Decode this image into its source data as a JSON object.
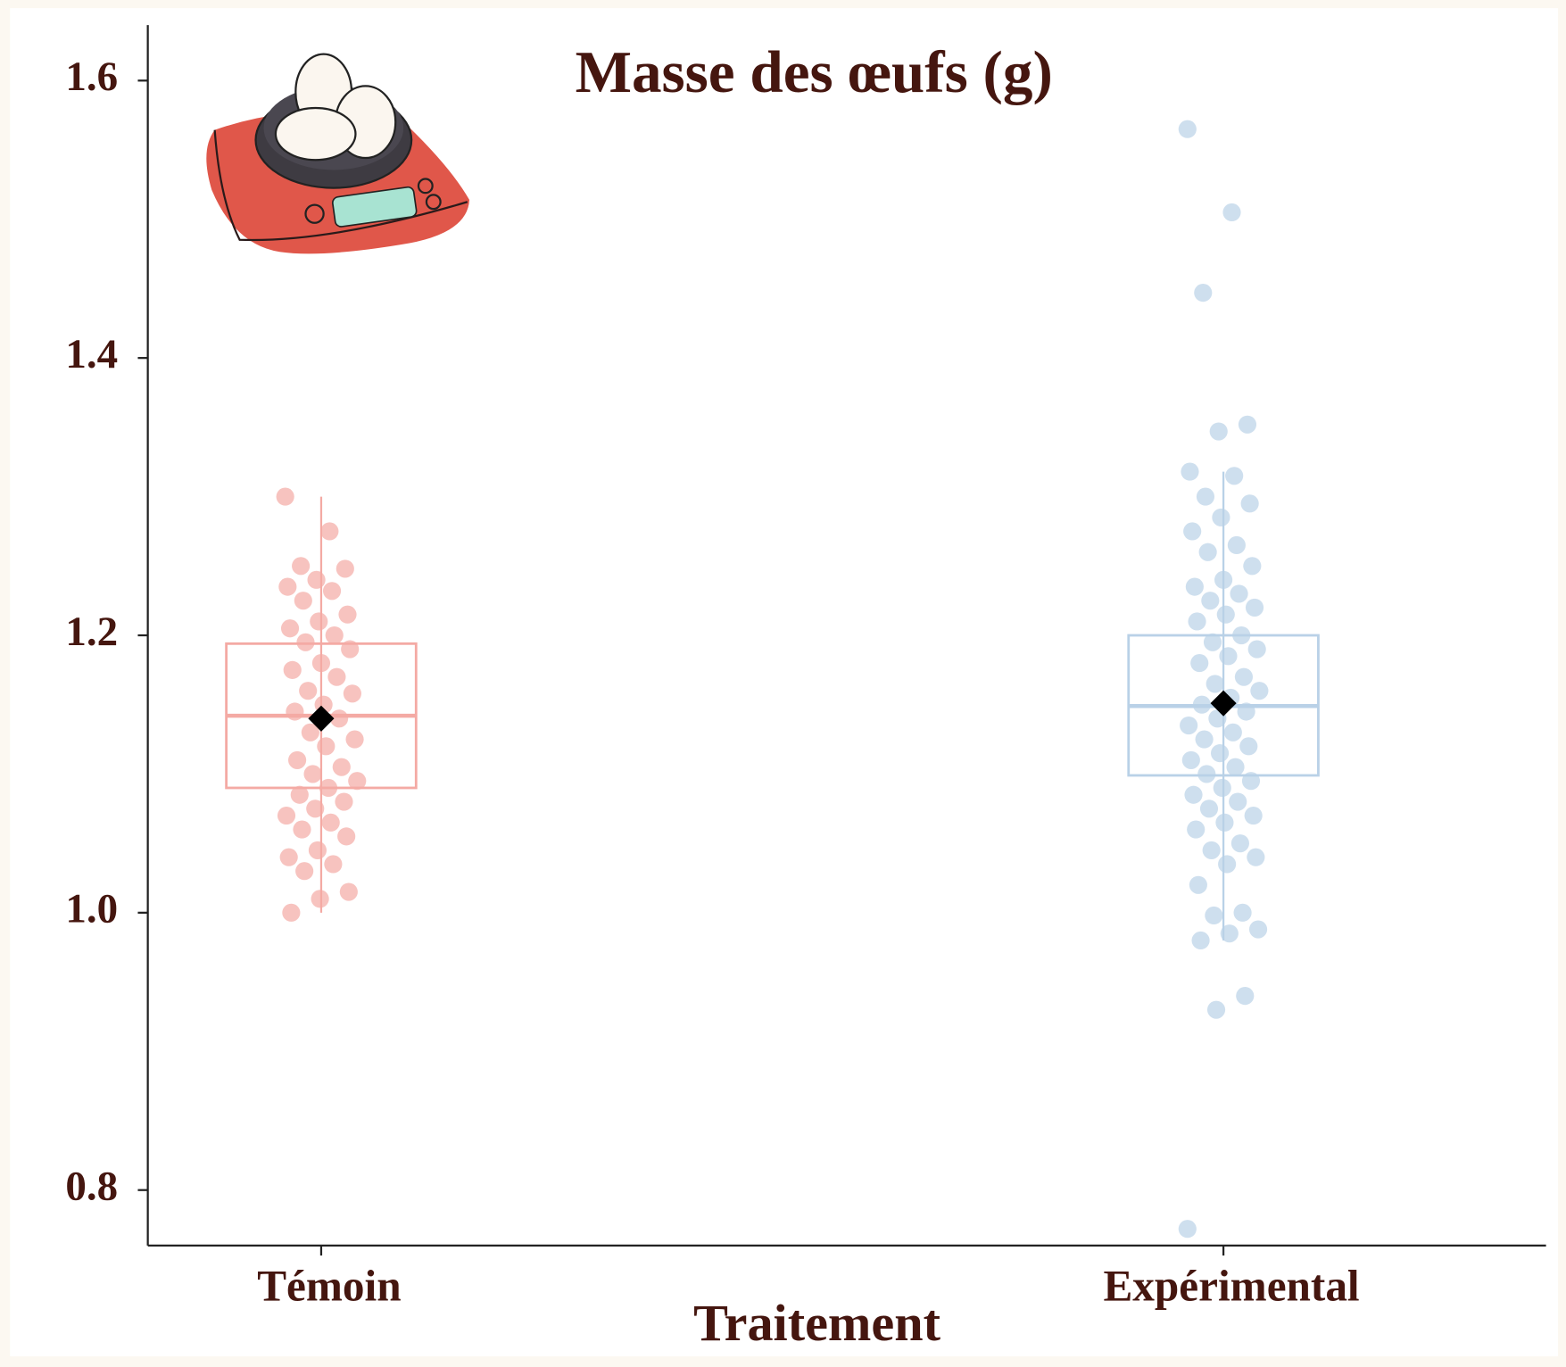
{
  "chart_data": {
    "type": "box",
    "title": "Masse des œufs (g)",
    "x_label": "Traitement",
    "categories": [
      "Témoin",
      "Expérimental"
    ],
    "ylim": [
      0.76,
      1.64
    ],
    "yticks": [
      {
        "value": 0.8,
        "label": "0.8"
      },
      {
        "value": 1.0,
        "label": "1.0"
      },
      {
        "value": 1.2,
        "label": "1.2"
      },
      {
        "value": 1.4,
        "label": "1.4"
      },
      {
        "value": 1.6,
        "label": "1.6"
      }
    ],
    "boxes": [
      {
        "color": "#f4aaa4",
        "whisker_low": 1.0,
        "q1": 1.09,
        "median": 1.142,
        "q3": 1.194,
        "whisker_high": 1.3,
        "mean": 1.14,
        "points": [
          1.3,
          1.275,
          1.25,
          1.248,
          1.24,
          1.235,
          1.232,
          1.225,
          1.215,
          1.21,
          1.205,
          1.2,
          1.195,
          1.19,
          1.18,
          1.175,
          1.17,
          1.16,
          1.158,
          1.15,
          1.145,
          1.14,
          1.13,
          1.125,
          1.12,
          1.11,
          1.105,
          1.1,
          1.095,
          1.09,
          1.085,
          1.08,
          1.075,
          1.07,
          1.065,
          1.06,
          1.055,
          1.045,
          1.04,
          1.035,
          1.03,
          1.015,
          1.01,
          1.0
        ]
      },
      {
        "color": "#b9d1e7",
        "whisker_low": 0.98,
        "q1": 1.099,
        "median": 1.149,
        "q3": 1.2,
        "whisker_high": 1.318,
        "mean": 1.151,
        "points": [
          1.565,
          1.505,
          1.447,
          1.352,
          1.347,
          1.318,
          1.315,
          1.3,
          1.295,
          1.285,
          1.275,
          1.265,
          1.26,
          1.25,
          1.24,
          1.235,
          1.23,
          1.225,
          1.22,
          1.215,
          1.21,
          1.2,
          1.195,
          1.19,
          1.185,
          1.18,
          1.17,
          1.165,
          1.16,
          1.155,
          1.15,
          1.145,
          1.14,
          1.135,
          1.13,
          1.125,
          1.12,
          1.115,
          1.11,
          1.105,
          1.1,
          1.095,
          1.09,
          1.085,
          1.08,
          1.075,
          1.07,
          1.065,
          1.06,
          1.05,
          1.045,
          1.04,
          1.035,
          1.02,
          1.0,
          0.998,
          0.988,
          0.985,
          0.98,
          0.94,
          0.93,
          0.772
        ]
      }
    ]
  }
}
